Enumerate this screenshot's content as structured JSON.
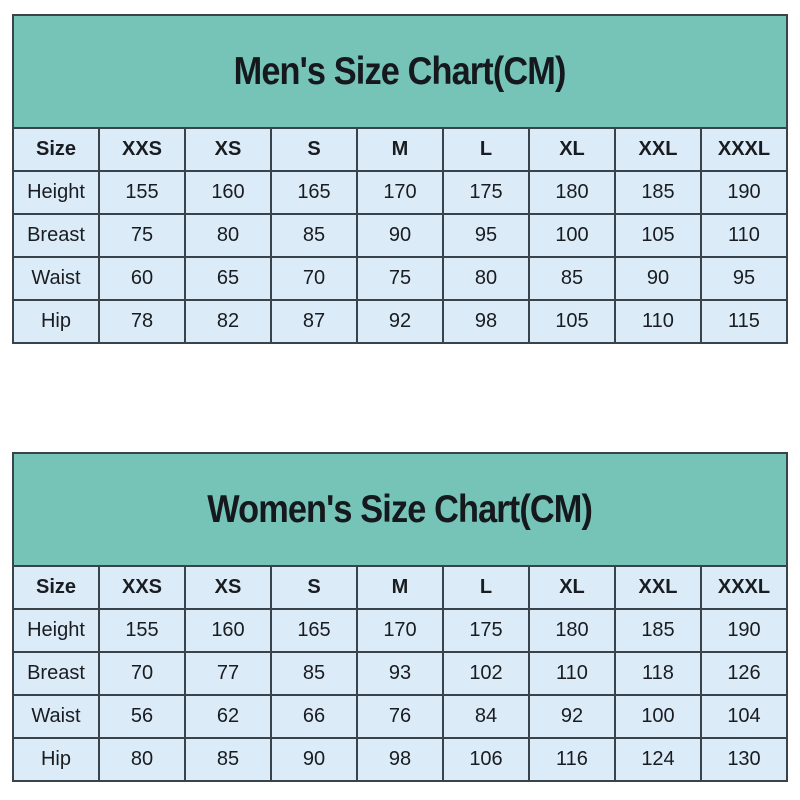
{
  "colors": {
    "band_teal": "#76c3b8",
    "cell_blue": "#dcebf8",
    "border_dark": "#39434c",
    "text_dark": "#15181c",
    "page_background": "#ffffff"
  },
  "chart_data": [
    {
      "type": "table",
      "title": "Men's Size Chart(CM)",
      "columns": [
        "Size",
        "XXS",
        "XS",
        "S",
        "M",
        "L",
        "XL",
        "XXL",
        "XXXL"
      ],
      "rows": [
        [
          "Height",
          155,
          160,
          165,
          170,
          175,
          180,
          185,
          190
        ],
        [
          "Breast",
          75,
          80,
          85,
          90,
          95,
          100,
          105,
          110
        ],
        [
          "Waist",
          60,
          65,
          70,
          75,
          80,
          85,
          90,
          95
        ],
        [
          "Hip",
          78,
          82,
          87,
          92,
          98,
          105,
          110,
          115
        ]
      ]
    },
    {
      "type": "table",
      "title": "Women's Size Chart(CM)",
      "columns": [
        "Size",
        "XXS",
        "XS",
        "S",
        "M",
        "L",
        "XL",
        "XXL",
        "XXXL"
      ],
      "rows": [
        [
          "Height",
          155,
          160,
          165,
          170,
          175,
          180,
          185,
          190
        ],
        [
          "Breast",
          70,
          77,
          85,
          93,
          102,
          110,
          118,
          126
        ],
        [
          "Waist",
          56,
          62,
          66,
          76,
          84,
          92,
          100,
          104
        ],
        [
          "Hip",
          80,
          85,
          90,
          98,
          106,
          116,
          124,
          130
        ]
      ]
    }
  ]
}
